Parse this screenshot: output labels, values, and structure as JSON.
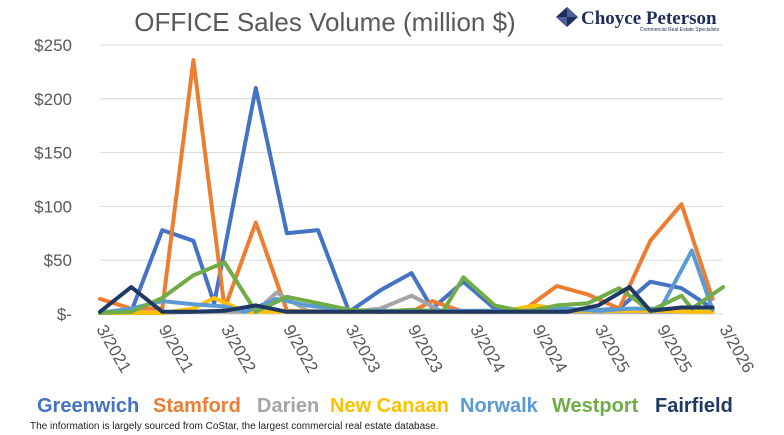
{
  "chart_data": {
    "type": "line",
    "title": "OFFICE Sales Volume (million $)",
    "y_tick_labels": [
      "$-",
      "$50",
      "$100",
      "$150",
      "$200",
      "$250"
    ],
    "y_tick_values": [
      0,
      50,
      100,
      150,
      200,
      250
    ],
    "ylim": [
      0,
      250
    ],
    "x_tick_labels": [
      "3/2021",
      "9/2021",
      "3/2022",
      "9/2022",
      "3/2023",
      "9/2023",
      "3/2024",
      "9/2024",
      "3/2025",
      "9/2025",
      "3/2026"
    ],
    "x_tick_values": [
      0,
      6,
      12,
      18,
      24,
      30,
      36,
      42,
      48,
      54,
      60
    ],
    "xlim": [
      0,
      60
    ],
    "grid": "horizontal",
    "legend_position": "bottom",
    "series": [
      {
        "name": "Greenwich",
        "color": "#4472c4",
        "points": [
          [
            0,
            1
          ],
          [
            3,
            2
          ],
          [
            6,
            78
          ],
          [
            9,
            68
          ],
          [
            11,
            10
          ],
          [
            15,
            210
          ],
          [
            18,
            75
          ],
          [
            21,
            78
          ],
          [
            24,
            2
          ],
          [
            27,
            22
          ],
          [
            30,
            38
          ],
          [
            32,
            5
          ],
          [
            35,
            30
          ],
          [
            38,
            5
          ],
          [
            41,
            3
          ],
          [
            44,
            5
          ],
          [
            47,
            3
          ],
          [
            50,
            5
          ],
          [
            53,
            30
          ],
          [
            56,
            24
          ],
          [
            59,
            5
          ]
        ]
      },
      {
        "name": "Stamford",
        "color": "#ed7d31",
        "points": [
          [
            0,
            14
          ],
          [
            3,
            5
          ],
          [
            6,
            5
          ],
          [
            9,
            236
          ],
          [
            12,
            5
          ],
          [
            15,
            85
          ],
          [
            18,
            3
          ],
          [
            21,
            2
          ],
          [
            24,
            2
          ],
          [
            27,
            2
          ],
          [
            30,
            2
          ],
          [
            32,
            12
          ],
          [
            35,
            2
          ],
          [
            38,
            2
          ],
          [
            41,
            5
          ],
          [
            44,
            26
          ],
          [
            47,
            18
          ],
          [
            50,
            5
          ],
          [
            53,
            68
          ],
          [
            56,
            102
          ],
          [
            59,
            14
          ]
        ]
      },
      {
        "name": "Darien",
        "color": "#a5a5a5",
        "points": [
          [
            0,
            1
          ],
          [
            3,
            1
          ],
          [
            6,
            1
          ],
          [
            9,
            2
          ],
          [
            12,
            2
          ],
          [
            15,
            2
          ],
          [
            17,
            20
          ],
          [
            20,
            3
          ],
          [
            24,
            2
          ],
          [
            27,
            5
          ],
          [
            30,
            17
          ],
          [
            33,
            2
          ],
          [
            36,
            2
          ],
          [
            39,
            2
          ],
          [
            42,
            2
          ],
          [
            45,
            2
          ],
          [
            48,
            2
          ],
          [
            51,
            2
          ],
          [
            54,
            2
          ],
          [
            57,
            2
          ],
          [
            59,
            2
          ]
        ]
      },
      {
        "name": "New Canaan",
        "color": "#ffc000",
        "points": [
          [
            0,
            1
          ],
          [
            3,
            1
          ],
          [
            6,
            1
          ],
          [
            9,
            5
          ],
          [
            11,
            15
          ],
          [
            14,
            2
          ],
          [
            18,
            2
          ],
          [
            21,
            2
          ],
          [
            24,
            2
          ],
          [
            27,
            2
          ],
          [
            30,
            2
          ],
          [
            33,
            2
          ],
          [
            36,
            2
          ],
          [
            39,
            3
          ],
          [
            42,
            8
          ],
          [
            45,
            3
          ],
          [
            48,
            3
          ],
          [
            51,
            3
          ],
          [
            54,
            3
          ],
          [
            57,
            2
          ],
          [
            59,
            2
          ]
        ]
      },
      {
        "name": "Norwalk",
        "color": "#5b9bd5",
        "points": [
          [
            0,
            1
          ],
          [
            3,
            5
          ],
          [
            6,
            12
          ],
          [
            9,
            9
          ],
          [
            12,
            7
          ],
          [
            14,
            2
          ],
          [
            17,
            14
          ],
          [
            20,
            8
          ],
          [
            24,
            3
          ],
          [
            27,
            3
          ],
          [
            30,
            3
          ],
          [
            33,
            3
          ],
          [
            36,
            3
          ],
          [
            39,
            3
          ],
          [
            42,
            3
          ],
          [
            45,
            5
          ],
          [
            48,
            3
          ],
          [
            51,
            5
          ],
          [
            54,
            5
          ],
          [
            57,
            59
          ],
          [
            59,
            4
          ]
        ]
      },
      {
        "name": "Westport",
        "color": "#70ad47",
        "points": [
          [
            0,
            1
          ],
          [
            3,
            2
          ],
          [
            6,
            15
          ],
          [
            9,
            36
          ],
          [
            12,
            48
          ],
          [
            15,
            2
          ],
          [
            18,
            16
          ],
          [
            21,
            10
          ],
          [
            24,
            4
          ],
          [
            27,
            2
          ],
          [
            30,
            4
          ],
          [
            33,
            2
          ],
          [
            35,
            34
          ],
          [
            38,
            8
          ],
          [
            41,
            2
          ],
          [
            44,
            8
          ],
          [
            47,
            10
          ],
          [
            50,
            24
          ],
          [
            53,
            3
          ],
          [
            56,
            17
          ],
          [
            57,
            5
          ],
          [
            60,
            25
          ]
        ]
      },
      {
        "name": "Fairfield",
        "color": "#203864",
        "points": [
          [
            0,
            2
          ],
          [
            3,
            25
          ],
          [
            6,
            2
          ],
          [
            9,
            2
          ],
          [
            12,
            3
          ],
          [
            15,
            8
          ],
          [
            18,
            2
          ],
          [
            21,
            2
          ],
          [
            24,
            2
          ],
          [
            27,
            2
          ],
          [
            30,
            2
          ],
          [
            33,
            2
          ],
          [
            36,
            2
          ],
          [
            39,
            2
          ],
          [
            42,
            2
          ],
          [
            45,
            2
          ],
          [
            48,
            8
          ],
          [
            51,
            25
          ],
          [
            53,
            3
          ],
          [
            56,
            6
          ],
          [
            59,
            6
          ]
        ]
      }
    ]
  },
  "logo": {
    "name": "Choyce Peterson",
    "tagline": "Commercial Real Estate Specialists"
  },
  "source_note": "The information is largely sourced from CoStar, the largest commercial real estate database."
}
